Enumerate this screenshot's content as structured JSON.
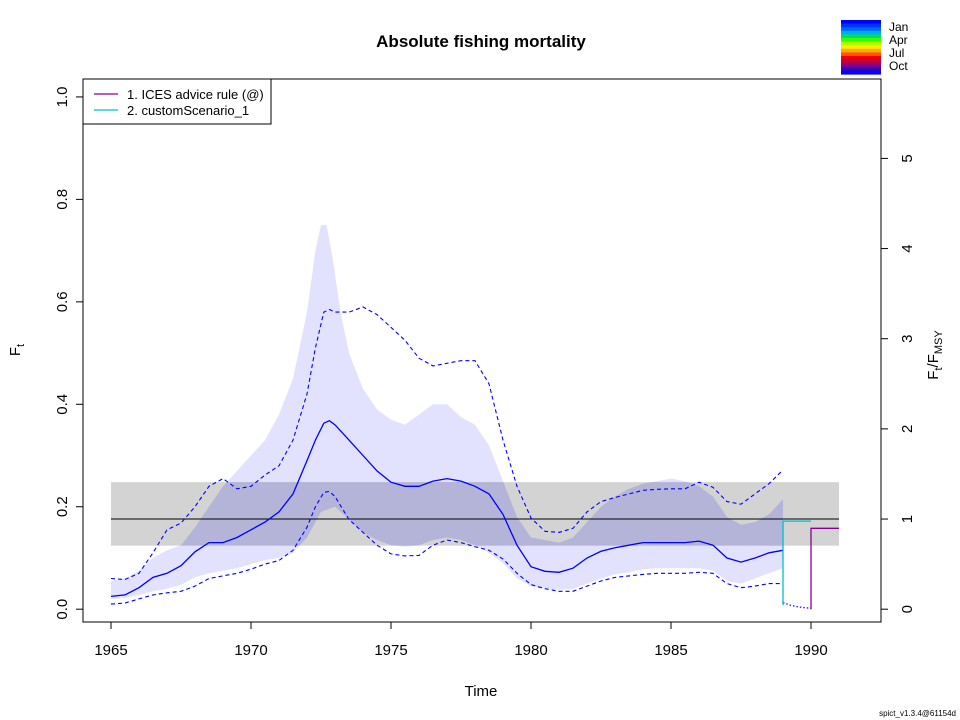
{
  "chart_data": {
    "type": "line",
    "title": "Absolute fishing mortality",
    "xlabel": "Time",
    "ylabel": "F",
    "ylabel_sub": "t",
    "y2label": "F",
    "y2label_sub1": "t",
    "y2label_sep": "/F",
    "y2label_sub2": "MSY",
    "xlim": [
      1964.0,
      1992.5
    ],
    "ylim": [
      -0.025,
      1.035
    ],
    "x_ticks": [
      1965,
      1970,
      1975,
      1980,
      1985,
      1990
    ],
    "y_ticks": [
      0.0,
      0.2,
      0.4,
      0.6,
      0.8,
      1.0
    ],
    "y_tick_labels": [
      "0.0",
      "0.2",
      "0.4",
      "0.6",
      "0.8",
      "1.0"
    ],
    "y2_ticks": [
      0,
      1,
      2,
      3,
      4,
      5
    ],
    "fmsy": 0.176,
    "fmsy_band": [
      0.124,
      0.248
    ],
    "band_x": [
      1965,
      1991
    ],
    "legend": [
      {
        "label": "1. ICES advice rule (@)",
        "color": "#8b008b"
      },
      {
        "label": "2. customScenario_1",
        "color": "#00bfc4"
      }
    ],
    "season_legend": [
      "Jan",
      "Apr",
      "Jul",
      "Oct"
    ],
    "season_colors": [
      "#0000ff",
      "#0033ff",
      "#0066ff",
      "#00aaff",
      "#00dd66",
      "#33ff00",
      "#aaff00",
      "#ffee00",
      "#ffaa00",
      "#ff5500",
      "#ee0000",
      "#bb0044",
      "#880088",
      "#4400aa",
      "#0000ff"
    ],
    "footnote": "spict_v1.3.4@61154d",
    "colors": {
      "estimate": "#0000ff",
      "ci_fill": "#e2e2ff",
      "fmsy_band": "#d3d3d3",
      "overlap": "#b4b4d9",
      "fmsy_line": "#000000",
      "dotted_forecast": "#0000ff"
    },
    "series": [
      {
        "name": "F estimate",
        "x": [
          1965.0,
          1965.5,
          1966.0,
          1966.5,
          1967.0,
          1967.5,
          1968.0,
          1968.5,
          1969.0,
          1969.5,
          1970.0,
          1970.5,
          1971.0,
          1971.5,
          1972.0,
          1972.3,
          1972.6,
          1972.8,
          1973.0,
          1973.5,
          1974.0,
          1974.5,
          1975.0,
          1975.5,
          1976.0,
          1976.5,
          1977.0,
          1977.5,
          1978.0,
          1978.5,
          1979.0,
          1979.5,
          1980.0,
          1980.5,
          1981.0,
          1981.5,
          1982.0,
          1982.5,
          1983.0,
          1983.5,
          1984.0,
          1984.5,
          1985.0,
          1985.5,
          1986.0,
          1986.5,
          1987.0,
          1987.5,
          1988.0,
          1988.5,
          1989.0
        ],
        "values": [
          0.025,
          0.028,
          0.042,
          0.062,
          0.07,
          0.085,
          0.112,
          0.13,
          0.13,
          0.14,
          0.155,
          0.17,
          0.19,
          0.225,
          0.29,
          0.33,
          0.363,
          0.368,
          0.36,
          0.33,
          0.3,
          0.27,
          0.248,
          0.24,
          0.24,
          0.25,
          0.255,
          0.25,
          0.24,
          0.225,
          0.185,
          0.125,
          0.083,
          0.074,
          0.072,
          0.08,
          0.1,
          0.113,
          0.12,
          0.125,
          0.13,
          0.13,
          0.13,
          0.13,
          0.133,
          0.125,
          0.1,
          0.092,
          0.1,
          0.11,
          0.115
        ]
      },
      {
        "name": "Upper CI",
        "x": [
          1965.0,
          1965.5,
          1966.0,
          1966.5,
          1967.0,
          1967.5,
          1968.0,
          1968.5,
          1969.0,
          1969.5,
          1970.0,
          1970.5,
          1971.0,
          1971.5,
          1972.0,
          1972.3,
          1972.6,
          1972.8,
          1973.0,
          1973.5,
          1974.0,
          1974.5,
          1975.0,
          1975.5,
          1976.0,
          1976.5,
          1977.0,
          1977.5,
          1978.0,
          1978.5,
          1979.0,
          1979.5,
          1980.0,
          1980.5,
          1981.0,
          1981.5,
          1982.0,
          1982.5,
          1983.0,
          1983.5,
          1984.0,
          1984.5,
          1985.0,
          1985.5,
          1986.0,
          1986.5,
          1987.0,
          1987.5,
          1988.0,
          1988.5,
          1989.0
        ],
        "values": [
          0.06,
          0.058,
          0.07,
          0.11,
          0.155,
          0.168,
          0.2,
          0.24,
          0.255,
          0.235,
          0.24,
          0.262,
          0.28,
          0.33,
          0.42,
          0.51,
          0.58,
          0.585,
          0.58,
          0.58,
          0.59,
          0.575,
          0.55,
          0.525,
          0.49,
          0.475,
          0.48,
          0.485,
          0.485,
          0.44,
          0.33,
          0.24,
          0.178,
          0.152,
          0.15,
          0.158,
          0.19,
          0.21,
          0.218,
          0.225,
          0.232,
          0.234,
          0.235,
          0.235,
          0.248,
          0.238,
          0.21,
          0.205,
          0.225,
          0.245,
          0.272
        ]
      },
      {
        "name": "Lower CI",
        "x": [
          1965.0,
          1965.5,
          1966.0,
          1966.5,
          1967.0,
          1967.5,
          1968.0,
          1968.5,
          1969.0,
          1969.5,
          1970.0,
          1970.5,
          1971.0,
          1971.5,
          1972.0,
          1972.3,
          1972.6,
          1972.8,
          1973.0,
          1973.5,
          1974.0,
          1974.5,
          1975.0,
          1975.5,
          1976.0,
          1976.5,
          1977.0,
          1977.5,
          1978.0,
          1978.5,
          1979.0,
          1979.5,
          1980.0,
          1980.5,
          1981.0,
          1981.5,
          1982.0,
          1982.5,
          1983.0,
          1983.5,
          1984.0,
          1984.5,
          1985.0,
          1985.5,
          1986.0,
          1986.5,
          1987.0,
          1987.5,
          1988.0,
          1988.5,
          1989.0
        ],
        "values": [
          0.01,
          0.012,
          0.02,
          0.028,
          0.032,
          0.035,
          0.045,
          0.06,
          0.065,
          0.07,
          0.078,
          0.088,
          0.095,
          0.115,
          0.16,
          0.2,
          0.228,
          0.23,
          0.22,
          0.175,
          0.15,
          0.125,
          0.108,
          0.104,
          0.105,
          0.125,
          0.135,
          0.13,
          0.122,
          0.115,
          0.098,
          0.07,
          0.048,
          0.04,
          0.035,
          0.035,
          0.045,
          0.055,
          0.062,
          0.065,
          0.068,
          0.07,
          0.07,
          0.07,
          0.072,
          0.07,
          0.05,
          0.042,
          0.045,
          0.05,
          0.05
        ]
      },
      {
        "name": "CI region upper",
        "x": [
          1965.0,
          1965.5,
          1966.0,
          1966.5,
          1967.0,
          1967.5,
          1968.0,
          1968.5,
          1969.0,
          1969.5,
          1970.0,
          1970.5,
          1971.0,
          1971.5,
          1972.0,
          1972.3,
          1972.5,
          1972.7,
          1972.9,
          1973.2,
          1973.5,
          1974.0,
          1974.5,
          1975.0,
          1975.5,
          1976.0,
          1976.5,
          1977.0,
          1977.5,
          1978.0,
          1978.5,
          1979.0,
          1979.5,
          1980.0,
          1980.5,
          1981.0,
          1981.5,
          1982.0,
          1982.5,
          1983.0,
          1983.5,
          1984.0,
          1984.5,
          1985.0,
          1985.5,
          1986.0,
          1986.5,
          1987.0,
          1987.5,
          1988.0,
          1988.5,
          1989.0
        ],
        "values": [
          0.055,
          0.06,
          0.075,
          0.1,
          0.115,
          0.125,
          0.16,
          0.2,
          0.24,
          0.27,
          0.3,
          0.33,
          0.38,
          0.45,
          0.58,
          0.7,
          0.75,
          0.75,
          0.69,
          0.58,
          0.5,
          0.43,
          0.39,
          0.37,
          0.36,
          0.38,
          0.4,
          0.4,
          0.375,
          0.36,
          0.32,
          0.25,
          0.18,
          0.14,
          0.135,
          0.13,
          0.14,
          0.17,
          0.2,
          0.22,
          0.235,
          0.245,
          0.25,
          0.255,
          0.25,
          0.24,
          0.22,
          0.18,
          0.165,
          0.17,
          0.185,
          0.215
        ]
      },
      {
        "name": "CI region lower",
        "x": [
          1965.0,
          1965.5,
          1966.0,
          1966.5,
          1967.0,
          1967.5,
          1968.0,
          1968.5,
          1969.0,
          1969.5,
          1970.0,
          1970.5,
          1971.0,
          1971.5,
          1972.0,
          1972.5,
          1973.0,
          1973.5,
          1974.0,
          1974.5,
          1975.0,
          1975.5,
          1976.0,
          1976.5,
          1977.0,
          1977.5,
          1978.0,
          1978.5,
          1979.0,
          1979.5,
          1980.0,
          1980.5,
          1981.0,
          1981.5,
          1982.0,
          1982.5,
          1983.0,
          1983.5,
          1984.0,
          1984.5,
          1985.0,
          1985.5,
          1986.0,
          1986.5,
          1987.0,
          1987.5,
          1988.0,
          1988.5,
          1989.0
        ],
        "values": [
          0.02,
          0.022,
          0.028,
          0.035,
          0.04,
          0.048,
          0.062,
          0.07,
          0.075,
          0.08,
          0.088,
          0.096,
          0.1,
          0.11,
          0.14,
          0.19,
          0.2,
          0.175,
          0.15,
          0.135,
          0.125,
          0.122,
          0.125,
          0.135,
          0.14,
          0.135,
          0.125,
          0.11,
          0.09,
          0.06,
          0.045,
          0.04,
          0.038,
          0.04,
          0.05,
          0.06,
          0.068,
          0.072,
          0.078,
          0.08,
          0.08,
          0.08,
          0.08,
          0.075,
          0.055,
          0.05,
          0.06,
          0.07,
          0.08
        ]
      },
      {
        "name": "Forecast dotted",
        "x": [
          1989.0,
          1989.25,
          1989.5,
          1989.75,
          1990.0
        ],
        "values": [
          0.013,
          0.008,
          0.005,
          0.003,
          0.002
        ]
      },
      {
        "name": "1. ICES advice rule (@)",
        "x": [
          1990.0,
          1990.0,
          1991.0
        ],
        "values": [
          0.0,
          0.158,
          0.158
        ]
      },
      {
        "name": "2. customScenario_1",
        "x": [
          1989.0,
          1989.0,
          1990.0
        ],
        "values": [
          0.008,
          0.172,
          0.172
        ]
      }
    ]
  }
}
